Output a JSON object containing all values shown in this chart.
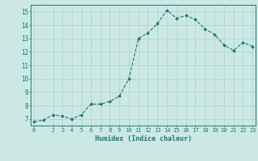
{
  "x": [
    0,
    1,
    2,
    3,
    4,
    5,
    6,
    7,
    8,
    9,
    10,
    11,
    12,
    13,
    14,
    15,
    16,
    17,
    18,
    19,
    20,
    21,
    22,
    23
  ],
  "y": [
    6.8,
    6.9,
    7.3,
    7.2,
    7.0,
    7.3,
    8.1,
    8.1,
    8.3,
    8.7,
    10.0,
    13.0,
    13.4,
    14.1,
    15.1,
    14.5,
    14.7,
    14.4,
    13.7,
    13.3,
    12.5,
    12.1,
    12.7,
    12.4
  ],
  "xlabel": "Humidex (Indice chaleur)",
  "xlim": [
    -0.3,
    23.3
  ],
  "ylim": [
    6.5,
    15.5
  ],
  "yticks": [
    7,
    8,
    9,
    10,
    11,
    12,
    13,
    14,
    15
  ],
  "xticks": [
    0,
    2,
    3,
    4,
    5,
    6,
    7,
    8,
    9,
    10,
    11,
    12,
    13,
    14,
    15,
    16,
    17,
    18,
    19,
    20,
    21,
    22,
    23
  ],
  "line_color": "#1a7a6e",
  "marker_color": "#1a7a6e",
  "bg_color": "#cce8e5",
  "grid_color": "#b0d4d0",
  "axis_color": "#1a7a6e",
  "tick_label_color": "#1a7a6e",
  "xlabel_color": "#1a7a6e",
  "tick_fontsize": 5.0,
  "xlabel_fontsize": 6.0
}
